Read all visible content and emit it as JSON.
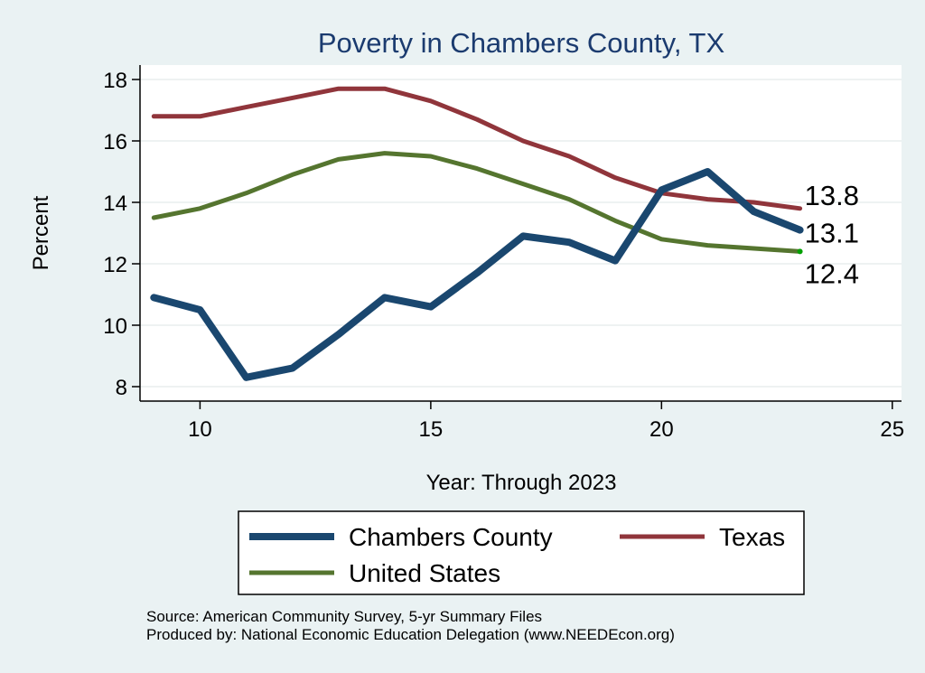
{
  "chart_data": {
    "type": "line",
    "title": "Poverty in Chambers County, TX",
    "xlabel": "Year: Through 2023",
    "ylabel": "Percent",
    "xlim": [
      8.7,
      25.2
    ],
    "ylim": [
      7.5,
      18.5
    ],
    "xticks": [
      10,
      15,
      20,
      25
    ],
    "yticks": [
      8,
      10,
      12,
      14,
      16,
      18
    ],
    "grid": true,
    "x": [
      9,
      10,
      11,
      12,
      13,
      14,
      15,
      16,
      17,
      18,
      19,
      20,
      21,
      22,
      23
    ],
    "series": [
      {
        "name": "Chambers County",
        "color": "#1a476f",
        "values": [
          10.9,
          10.5,
          8.3,
          8.6,
          9.7,
          10.9,
          10.6,
          11.7,
          12.9,
          12.7,
          12.1,
          14.4,
          15.0,
          13.7,
          13.1
        ],
        "end_label": "13.1"
      },
      {
        "name": "Texas",
        "color": "#90353b",
        "values": [
          16.8,
          16.8,
          17.1,
          17.4,
          17.7,
          17.7,
          17.3,
          16.7,
          16.0,
          15.5,
          14.8,
          14.3,
          14.1,
          14.0,
          13.8
        ],
        "end_label": "13.8"
      },
      {
        "name": "United States",
        "color": "#55752f",
        "values": [
          13.5,
          13.8,
          14.3,
          14.9,
          15.4,
          15.6,
          15.5,
          15.1,
          14.6,
          14.1,
          13.4,
          12.8,
          12.6,
          12.5,
          12.4
        ],
        "end_label": "12.4"
      }
    ],
    "legend_position": "bottom"
  },
  "source_lines": [
    "Source: American Community Survey, 5-yr Summary Files",
    "Produced by: National Economic Education Delegation (www.NEEDEcon.org)"
  ]
}
